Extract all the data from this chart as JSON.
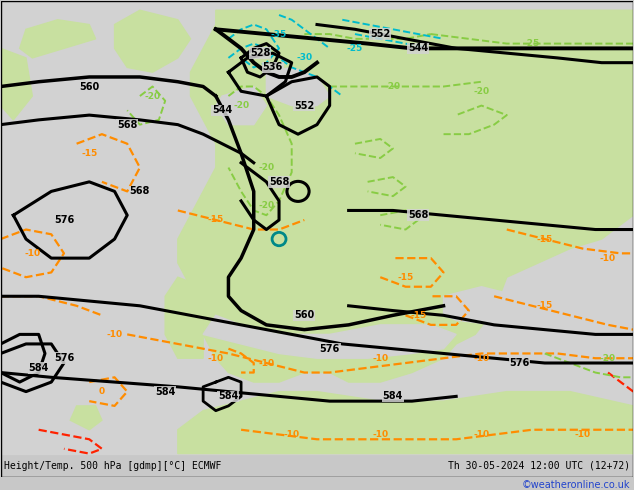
{
  "bottom_left_label": "Height/Temp. 500 hPa [gdmp][°C] ECMWF",
  "bottom_right_label": "Th 30-05-2024 12:00 UTC (12+72)",
  "watermark": "©weatheronline.co.uk",
  "fig_width": 6.34,
  "fig_height": 4.9,
  "dpi": 100,
  "bg_ocean": "#d0d0d0",
  "bg_land": "#c8e0a0",
  "contour_z500": "#000000",
  "contour_orange": "#ff8c00",
  "contour_green": "#88cc44",
  "contour_cyan": "#00bbcc"
}
